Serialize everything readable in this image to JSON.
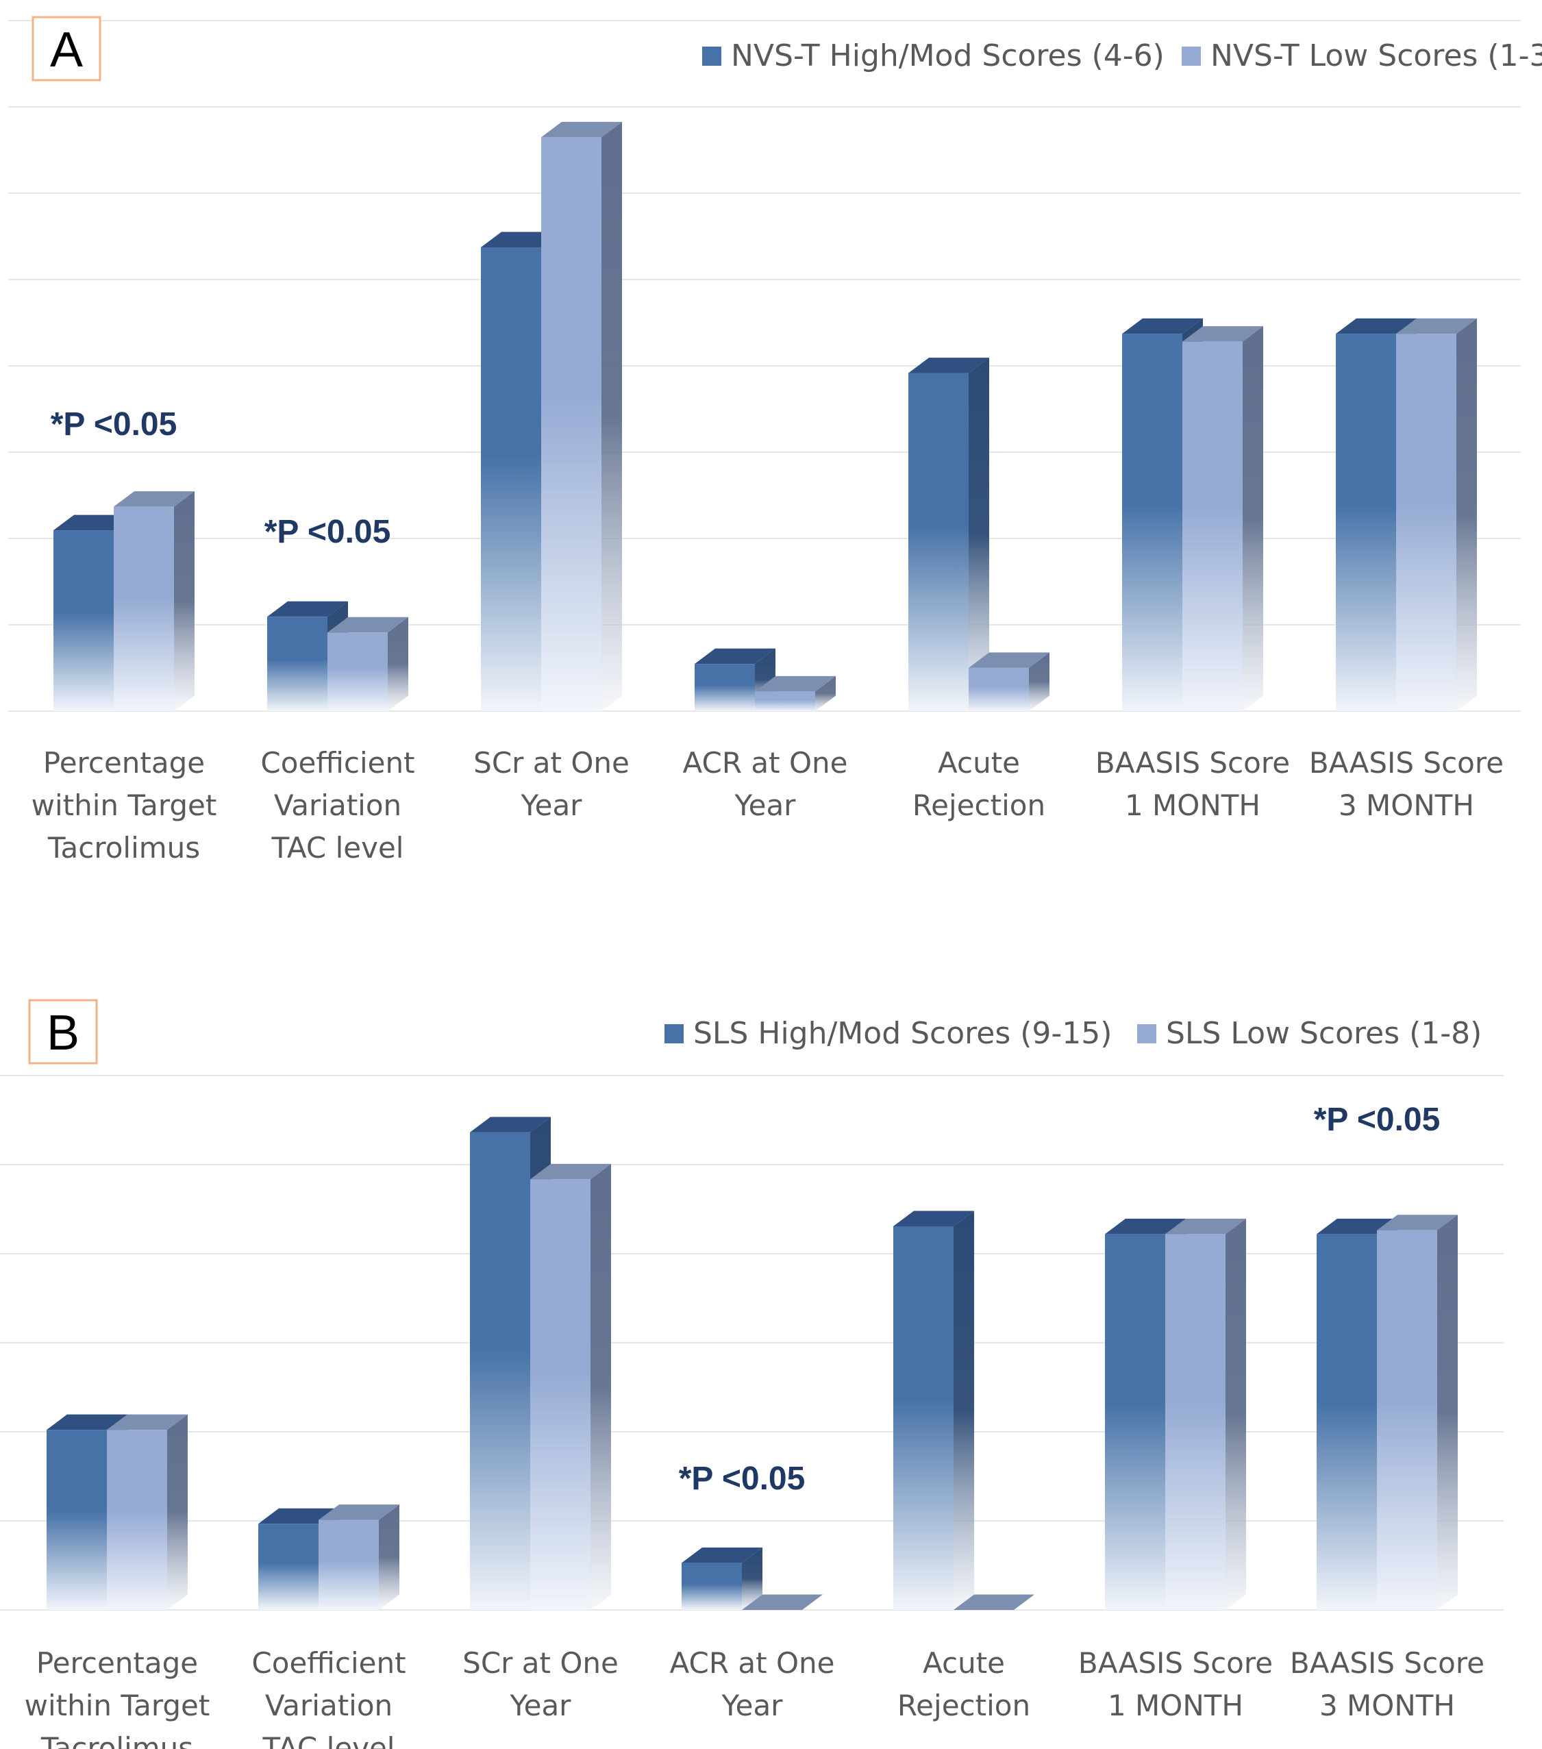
{
  "colors": {
    "high_front": "#4672a8",
    "high_top": "#2f5080",
    "high_side": "#2c4a74",
    "low_front": "#95abd4",
    "low_top": "#7d8fb0",
    "low_side": "#5f6f8d",
    "grid": "#e6e6e6",
    "label_box_border": "#f4b183",
    "annotation": "#1f3864"
  },
  "chart_data": [
    {
      "type": "bar",
      "panel_label": "A",
      "categories": [
        [
          "Percentage",
          "within Target",
          "Tacrolimus"
        ],
        [
          "Coefficient",
          "Variation",
          "TAC level"
        ],
        [
          "SCr at One",
          "Year"
        ],
        [
          "ACR at One",
          "Year"
        ],
        [
          "Acute",
          "Rejection"
        ],
        [
          "BAASIS Score",
          "1 MONTH"
        ],
        [
          "BAASIS Score",
          "3 MONTH"
        ]
      ],
      "series": [
        {
          "name": "NVS-T High/Mod Scores (4-6)",
          "values": [
            2.3,
            1.2,
            5.9,
            0.6,
            4.3,
            4.8,
            4.8
          ]
        },
        {
          "name": "NVS-T Low Scores (1-3",
          "values": [
            2.6,
            1.0,
            7.3,
            0.25,
            0.55,
            4.7,
            4.8
          ]
        }
      ],
      "ylim": [
        0,
        8
      ],
      "grid": true,
      "legend_position": "top-right",
      "annotations": [
        {
          "text": "*P <0.05",
          "category": 0
        },
        {
          "text": "*P <0.05",
          "category": 1
        }
      ]
    },
    {
      "type": "bar",
      "panel_label": "B",
      "categories": [
        [
          "Percentage",
          "within Target",
          "Tacrolimus"
        ],
        [
          "Coefficient",
          "Variation",
          "TAC level"
        ],
        [
          "SCr at One",
          "Year"
        ],
        [
          "ACR at One",
          "Year"
        ],
        [
          "Acute",
          "Rejection"
        ],
        [
          "BAASIS Score",
          "1 MONTH"
        ],
        [
          "BAASIS Score",
          "3 MONTH"
        ]
      ],
      "series": [
        {
          "name": "SLS High/Mod Scores (9-15)",
          "values": [
            2.3,
            1.1,
            6.1,
            0.6,
            4.9,
            4.8,
            4.8
          ]
        },
        {
          "name": "SLS Low Scores (1-8)",
          "values": [
            2.3,
            1.15,
            5.5,
            0.0,
            0.0,
            4.8,
            4.85
          ]
        }
      ],
      "ylim": [
        0,
        7
      ],
      "grid": true,
      "legend_position": "top-right",
      "annotations": [
        {
          "text": "*P <0.05",
          "category": 3
        },
        {
          "text": "*P <0.05",
          "category": 6
        }
      ]
    }
  ]
}
